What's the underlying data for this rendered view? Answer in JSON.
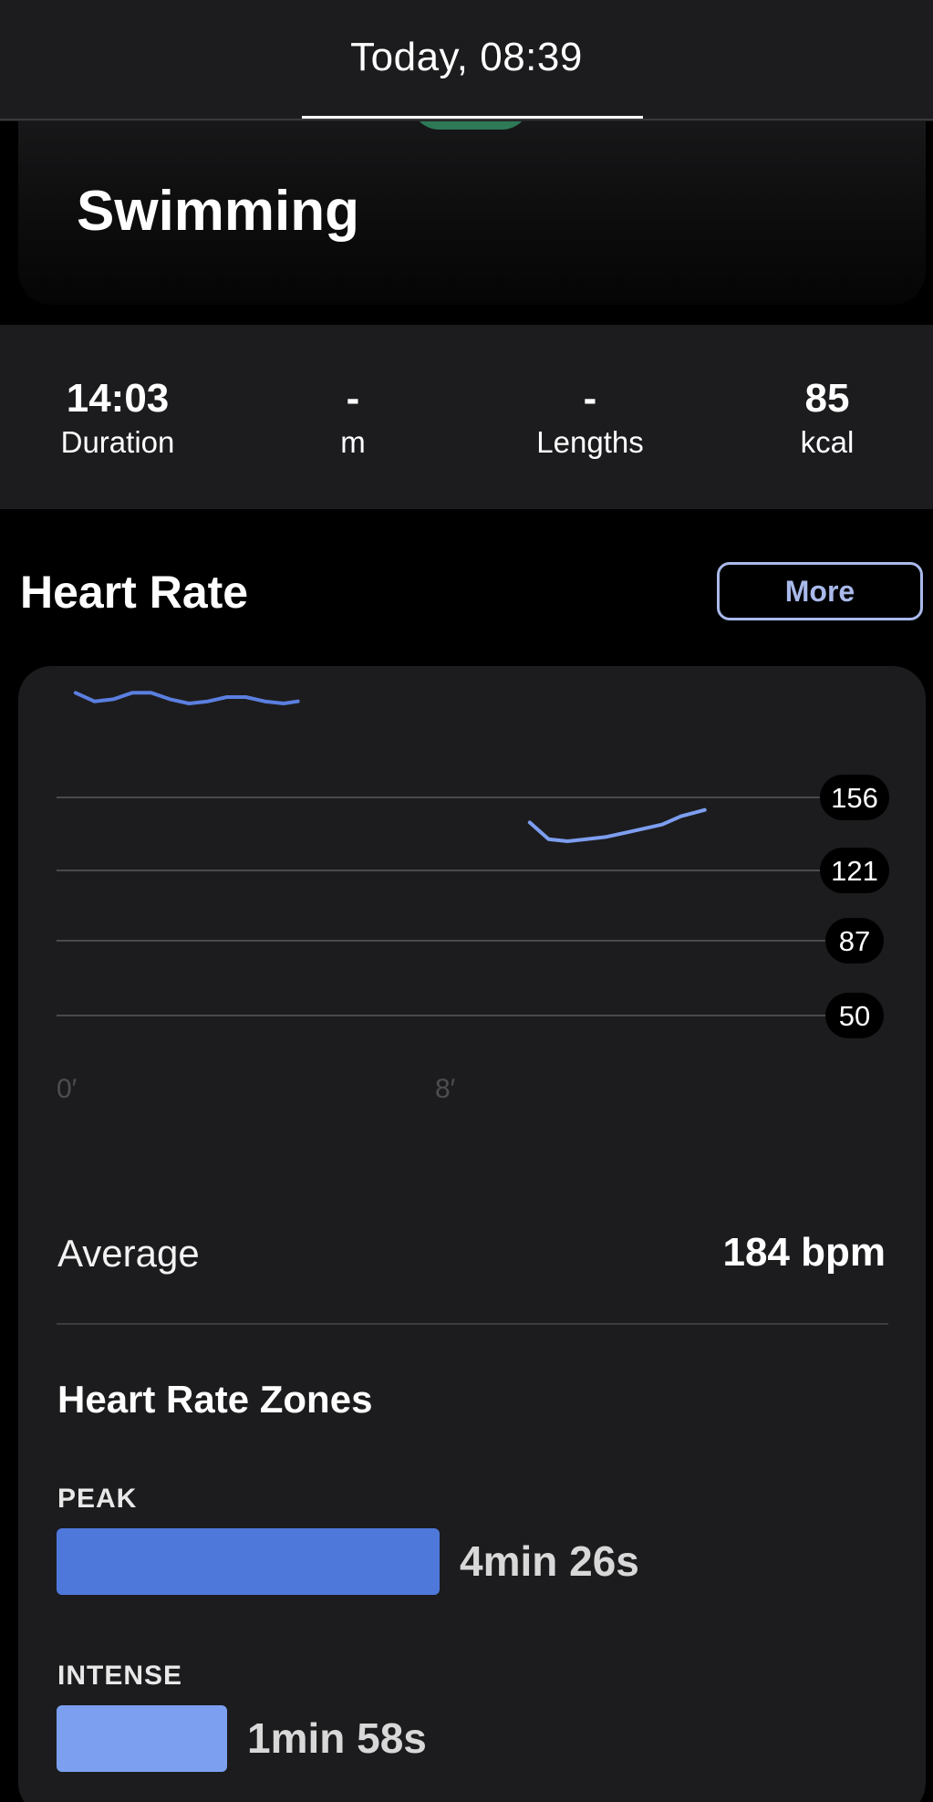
{
  "header": {
    "title": "Today, 08:39"
  },
  "activity": {
    "name": "Swimming",
    "icon": "swimming-icon",
    "icon_color": "#2e7a57"
  },
  "stats": [
    {
      "value": "14:03",
      "label": "Duration"
    },
    {
      "value": "-",
      "label": "m"
    },
    {
      "value": "-",
      "label": "Lengths"
    },
    {
      "value": "85",
      "label": "kcal"
    }
  ],
  "heart_rate": {
    "heading": "Heart Rate",
    "more_label": "More",
    "average_label": "Average",
    "average_value": "184 bpm",
    "zones_heading": "Heart Rate Zones",
    "zones": [
      {
        "label": "PEAK",
        "time": "4min 26s",
        "color": "#4f78db",
        "fraction": 1.0
      },
      {
        "label": "INTENSE",
        "time": "1min 58s",
        "color": "#7c9ff0",
        "fraction": 0.445
      }
    ]
  },
  "chart_data": {
    "type": "line",
    "xlabel": "",
    "ylabel": "",
    "x_ticks": [
      "0′",
      "8′"
    ],
    "y_ticks": [
      156,
      121,
      87,
      50
    ],
    "grid": true,
    "line_color": "#6f8fe6",
    "series": [
      {
        "x": [
          0.4,
          0.8,
          1.2,
          1.6,
          2.0,
          2.4,
          2.8,
          3.2,
          3.6,
          4.0,
          4.4,
          4.8,
          5.1
        ],
        "y": [
          205,
          201,
          202,
          205,
          205,
          202,
          200,
          201,
          203,
          203,
          201,
          200,
          201
        ]
      },
      {
        "x": [
          10.0,
          10.4,
          10.8,
          11.2,
          11.6,
          12.0,
          12.4,
          12.8,
          13.2,
          13.7
        ],
        "y": [
          144,
          136,
          135,
          136,
          137,
          139,
          141,
          143,
          147,
          150
        ]
      }
    ]
  }
}
